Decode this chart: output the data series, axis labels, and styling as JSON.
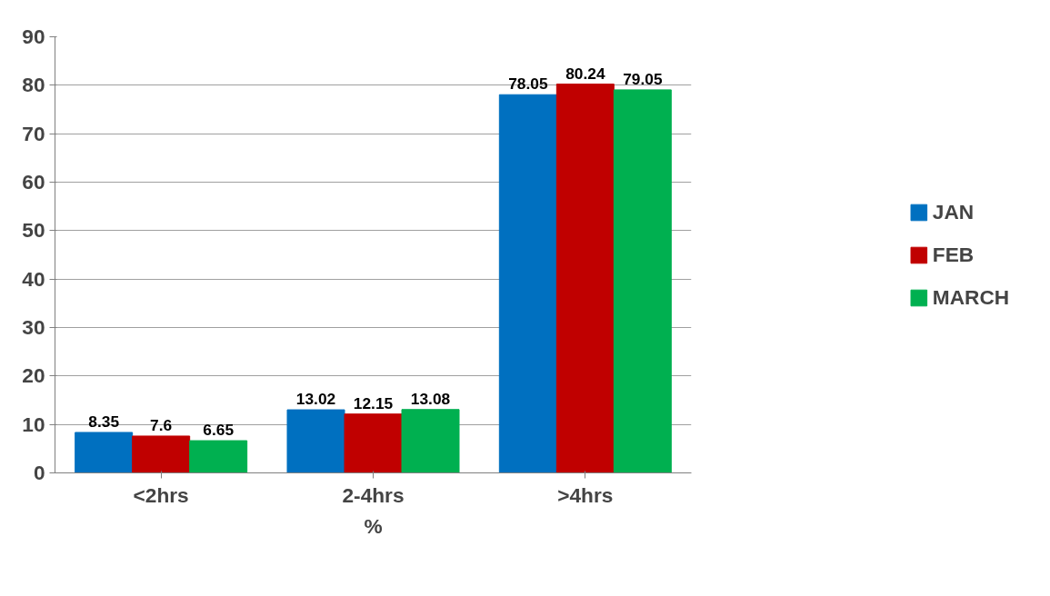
{
  "chart_data": {
    "type": "bar",
    "categories": [
      "<2hrs",
      "2-4hrs",
      ">4hrs"
    ],
    "xlabel": "%",
    "series": [
      {
        "name": "JAN",
        "color": "#0070c0",
        "values": [
          8.35,
          13.02,
          78.05
        ]
      },
      {
        "name": "FEB",
        "color": "#c00000",
        "values": [
          7.6,
          12.15,
          80.24
        ]
      },
      {
        "name": "MARCH",
        "color": "#00b050",
        "values": [
          6.65,
          13.08,
          79.05
        ]
      }
    ],
    "ylim": [
      0,
      90
    ],
    "yticks": [
      0,
      10,
      20,
      30,
      40,
      50,
      60,
      70,
      80,
      90
    ],
    "grid": "y",
    "legend": "right",
    "data_labels": true
  }
}
